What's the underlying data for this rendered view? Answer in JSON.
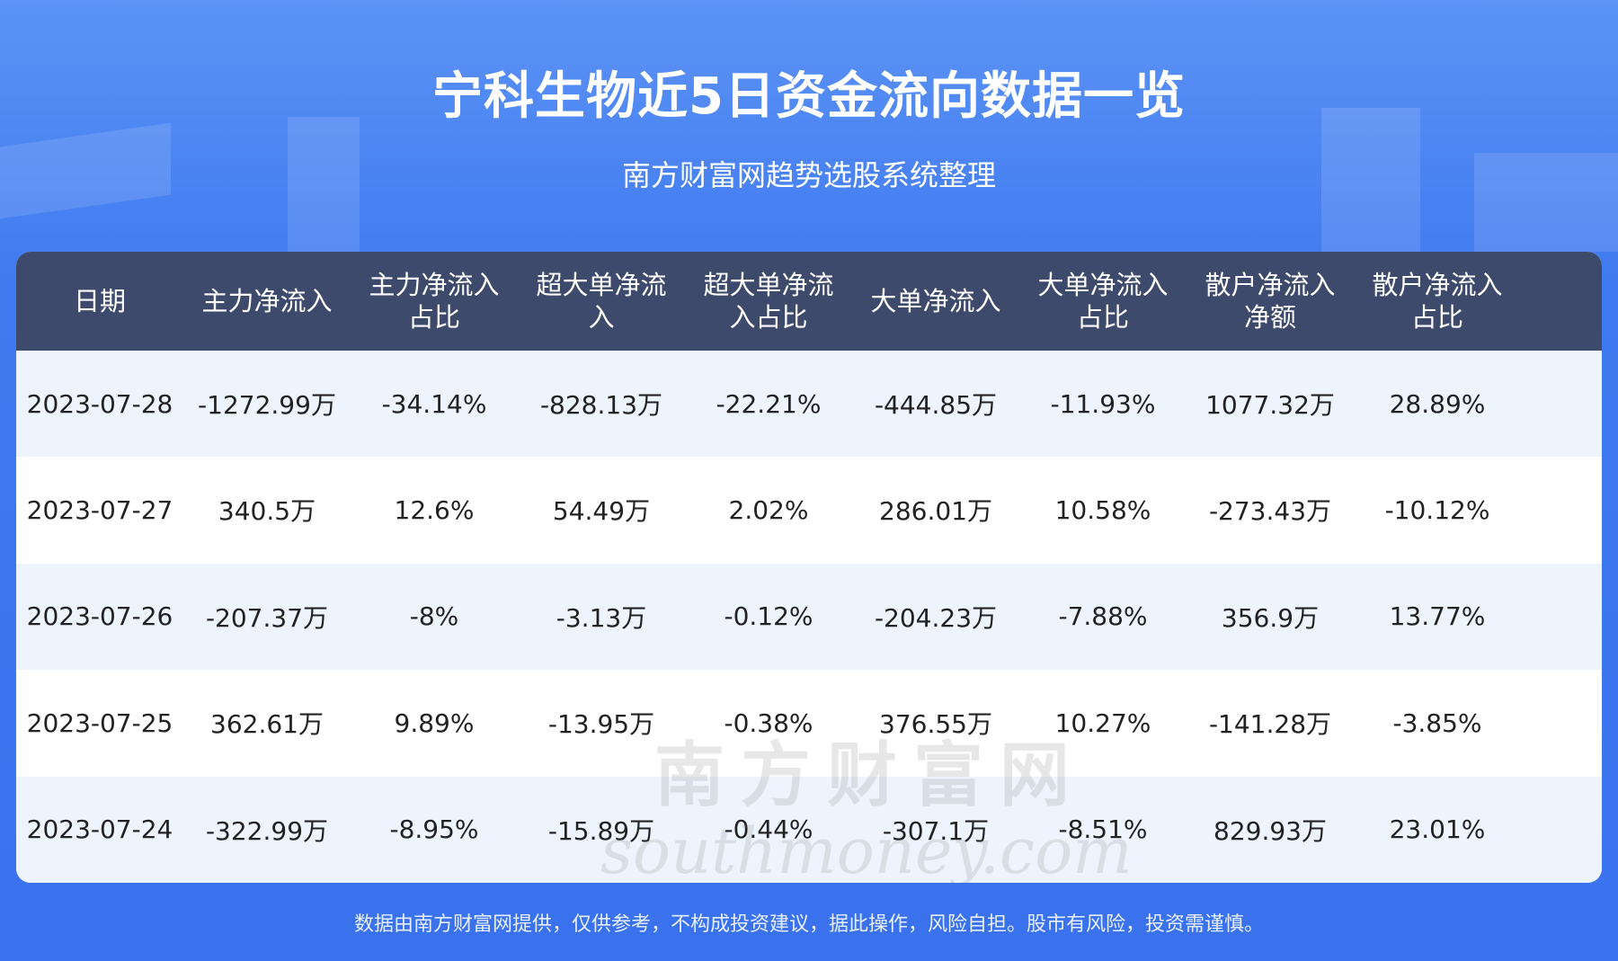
{
  "header": {
    "title": "宁科生物近5日资金流向数据一览",
    "subtitle": "南方财富网趋势选股系统整理"
  },
  "table": {
    "columns": [
      "日期",
      "主力净流入",
      "主力净流入占比",
      "超大单净流入",
      "超大单净流入占比",
      "大单净流入",
      "大单净流入占比",
      "散户净流入净额",
      "散户净流入占比"
    ],
    "rows": [
      [
        "2023-07-28",
        "-1272.99万",
        "-34.14%",
        "-828.13万",
        "-22.21%",
        "-444.85万",
        "-11.93%",
        "1077.32万",
        "28.89%"
      ],
      [
        "2023-07-27",
        "340.5万",
        "12.6%",
        "54.49万",
        "2.02%",
        "286.01万",
        "10.58%",
        "-273.43万",
        "-10.12%"
      ],
      [
        "2023-07-26",
        "-207.37万",
        "-8%",
        "-3.13万",
        "-0.12%",
        "-204.23万",
        "-7.88%",
        "356.9万",
        "13.77%"
      ],
      [
        "2023-07-25",
        "362.61万",
        "9.89%",
        "-13.95万",
        "-0.38%",
        "376.55万",
        "10.27%",
        "-141.28万",
        "-3.85%"
      ],
      [
        "2023-07-24",
        "-322.99万",
        "-8.95%",
        "-15.89万",
        "-0.44%",
        "-307.1万",
        "-8.51%",
        "829.93万",
        "23.01%"
      ]
    ]
  },
  "watermark": [
    "南方财富网",
    "southmoney.com"
  ],
  "footer": "数据由南方财富网提供，仅供参考，不构成投资建议，据此操作，风险自担。股市有风险，投资需谨慎。"
}
